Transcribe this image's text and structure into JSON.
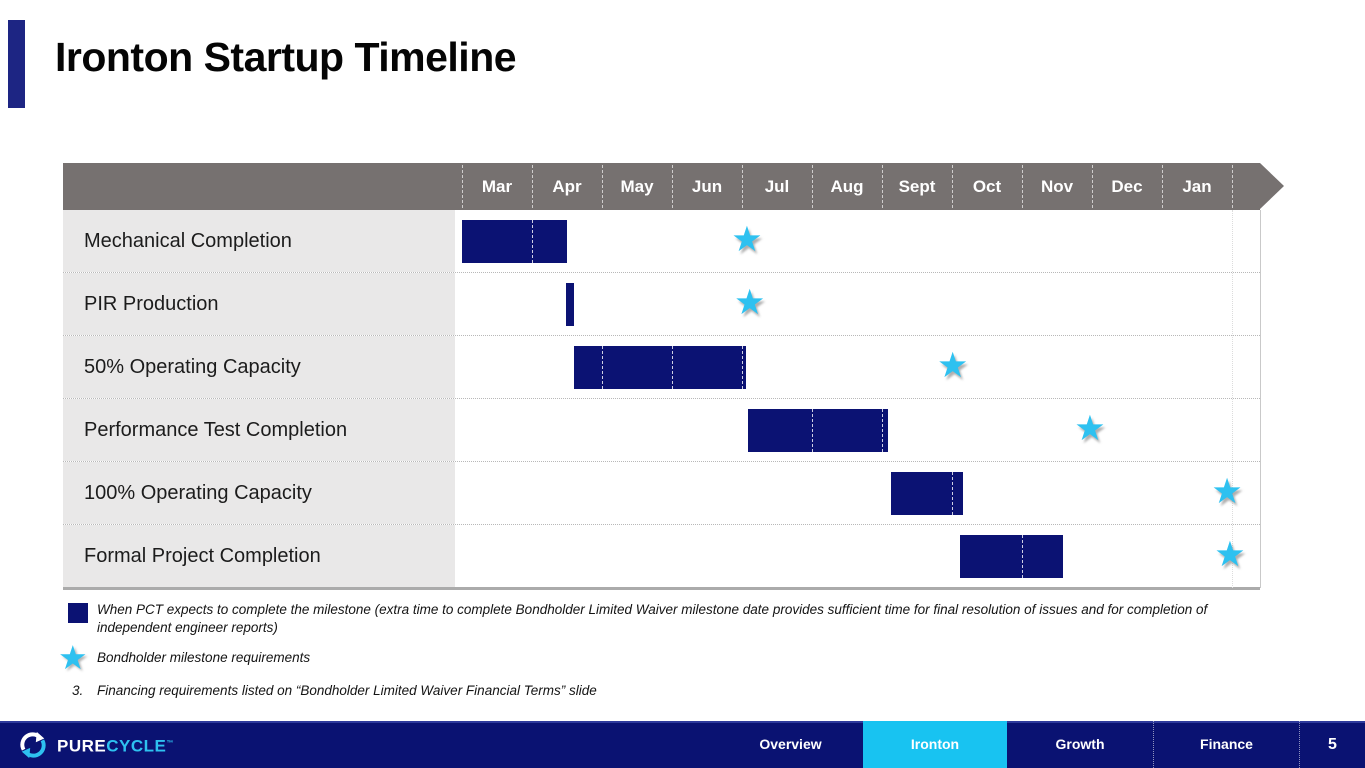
{
  "slide": {
    "title": "Ironton Startup Timeline"
  },
  "chart_data": {
    "type": "gantt",
    "title": "Ironton Startup Timeline",
    "months": [
      "Mar",
      "Apr",
      "May",
      "Jun",
      "Jul",
      "Aug",
      "Sept",
      "Oct",
      "Nov",
      "Dec",
      "Jan"
    ],
    "month_unit_note": "0 = start of Mar; 1 month = 1 unit",
    "rows": [
      {
        "label": "Mechanical Completion",
        "bar": {
          "start_month": 0.0,
          "end_month": 1.5
        },
        "milestone_month": 4.07
      },
      {
        "label": "PIR Production",
        "bar": {
          "start_month": 1.49,
          "end_month": 1.6
        },
        "milestone_month": 4.11
      },
      {
        "label": "50% Operating Capacity",
        "bar": {
          "start_month": 1.6,
          "end_month": 4.06
        },
        "milestone_month": 7.01
      },
      {
        "label": "Performance Test Completion",
        "bar": {
          "start_month": 4.09,
          "end_month": 6.09
        },
        "milestone_month": 8.97
      },
      {
        "label": "100% Operating Capacity",
        "bar": {
          "start_month": 6.13,
          "end_month": 7.16
        },
        "milestone_month": 10.93
      },
      {
        "label": "Formal Project Completion",
        "bar": {
          "start_month": 7.11,
          "end_month": 8.59
        },
        "milestone_month": 10.97
      }
    ],
    "legend": [
      {
        "symbol": "navy-bar",
        "label": "When PCT expects to complete the milestone"
      },
      {
        "symbol": "cyan-star",
        "label": "Bondholder milestone requirements"
      }
    ]
  },
  "legend": {
    "bar_label": "When PCT expects to complete the milestone (extra time to complete Bondholder Limited Waiver milestone date provides sufficient time for final resolution of issues and for completion of independent engineer reports)",
    "star_label": "Bondholder milestone requirements",
    "footnote_number": "3.",
    "footnote_text": "Financing requirements listed on “Bondholder Limited Waiver Financial Terms” slide"
  },
  "footer": {
    "brand_pure": "PURE",
    "brand_cycle": "CYCLE",
    "brand_tm": "™",
    "tabs": [
      {
        "label": "Overview",
        "active": false
      },
      {
        "label": "Ironton",
        "active": true
      },
      {
        "label": "Growth",
        "active": false
      },
      {
        "label": "Finance",
        "active": false
      }
    ],
    "page_number": "5"
  },
  "colors": {
    "bar_navy": "#0B1273",
    "header_gray": "#767170",
    "label_bg": "#E9E8E8",
    "star_cyan": "#2EC1F0",
    "active_tab_cyan": "#18C3F1",
    "footer_navy": "#0A1272",
    "title_accent": "#1D2583"
  }
}
